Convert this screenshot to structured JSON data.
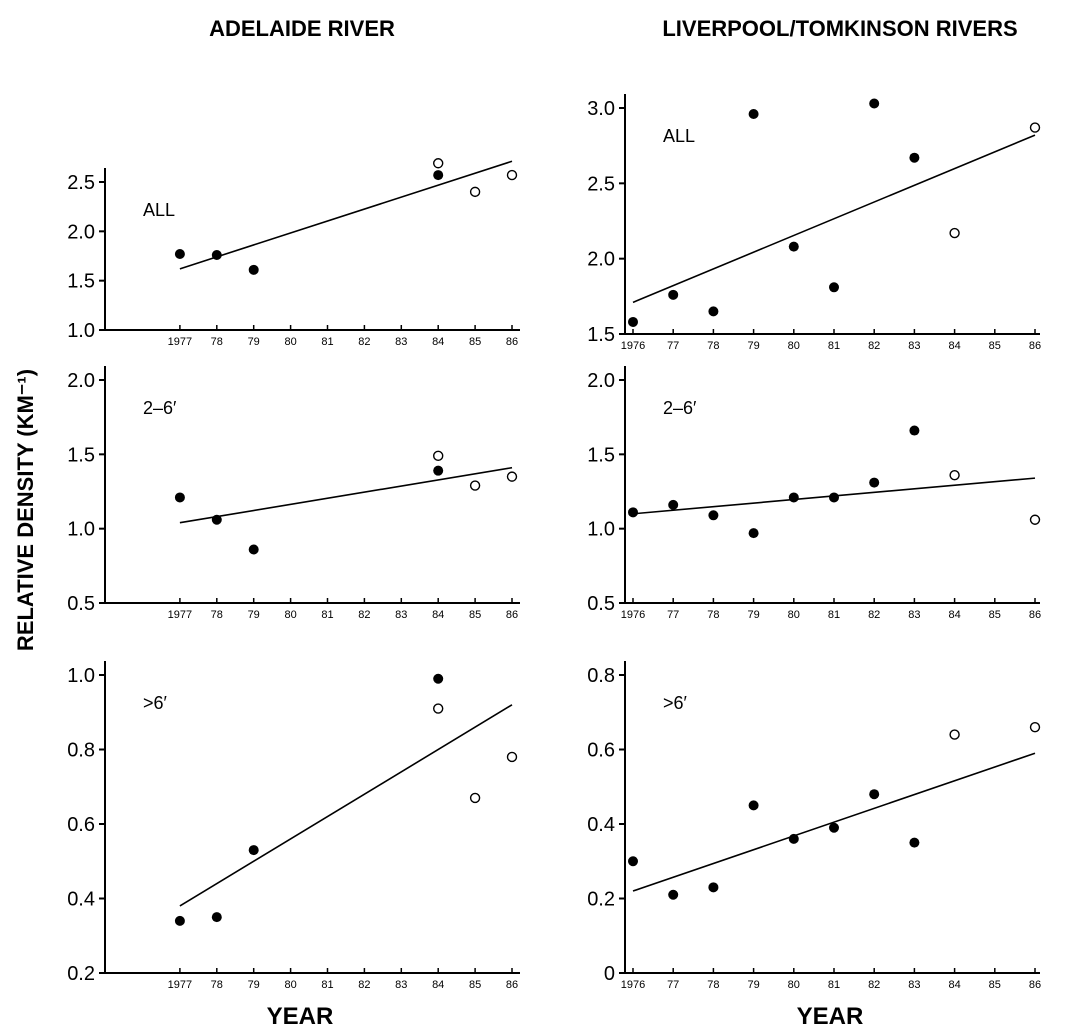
{
  "titles": {
    "left": "ADELAIDE RIVER",
    "right": "LIVERPOOL/TOMKINSON RIVERS"
  },
  "ylabel": "RELATIVE DENSITY (KM⁻¹)",
  "xlabel_left": "YEAR",
  "xlabel_right": "YEAR",
  "legend": {
    "filled_marker": "filled circle",
    "open_marker": "open circle"
  },
  "chart_data": [
    {
      "type": "scatter",
      "panel": "adelaide-all",
      "label": "ALL",
      "xlim": [
        1976,
        1986
      ],
      "ylim": [
        1.0,
        2.5
      ],
      "yticks": [
        "1.0",
        "1.5",
        "2.0",
        "2.5"
      ],
      "xticks": [
        "1977",
        "78",
        "79",
        "80",
        "81",
        "82",
        "83",
        "84",
        "85",
        "86"
      ],
      "filled": [
        [
          1977,
          1.77
        ],
        [
          1978,
          1.76
        ],
        [
          1979,
          1.61
        ],
        [
          1984,
          2.57
        ]
      ],
      "open": [
        [
          1984,
          2.69
        ],
        [
          1985,
          2.4
        ],
        [
          1986,
          2.57
        ]
      ],
      "trend": [
        [
          1977,
          1.62
        ],
        [
          1986,
          2.71
        ]
      ]
    },
    {
      "type": "scatter",
      "panel": "liverpool-all",
      "label": "ALL",
      "xlim": [
        1976,
        1986
      ],
      "ylim": [
        1.5,
        3.0
      ],
      "yticks": [
        "1.5",
        "2.0",
        "2.5",
        "3.0"
      ],
      "xticks": [
        "1976",
        "77",
        "78",
        "79",
        "80",
        "81",
        "82",
        "83",
        "84",
        "85",
        "86"
      ],
      "filled": [
        [
          1976,
          1.58
        ],
        [
          1977,
          1.76
        ],
        [
          1978,
          1.65
        ],
        [
          1979,
          2.96
        ],
        [
          1980,
          2.08
        ],
        [
          1981,
          1.81
        ],
        [
          1982,
          3.03
        ],
        [
          1983,
          2.67
        ]
      ],
      "open": [
        [
          1984,
          2.17
        ],
        [
          1986,
          2.87
        ]
      ],
      "trend": [
        [
          1976,
          1.71
        ],
        [
          1986,
          2.82
        ]
      ]
    },
    {
      "type": "scatter",
      "panel": "adelaide-2-6",
      "label": "2–6′",
      "xlim": [
        1976,
        1986
      ],
      "ylim": [
        0.5,
        2.0
      ],
      "yticks": [
        "0.5",
        "1.0",
        "1.5",
        "2.0"
      ],
      "xticks": [
        "1977",
        "78",
        "79",
        "80",
        "81",
        "82",
        "83",
        "84",
        "85",
        "86"
      ],
      "filled": [
        [
          1977,
          1.21
        ],
        [
          1978,
          1.06
        ],
        [
          1979,
          0.86
        ],
        [
          1984,
          1.39
        ]
      ],
      "open": [
        [
          1984,
          1.49
        ],
        [
          1985,
          1.29
        ],
        [
          1986,
          1.35
        ]
      ],
      "trend": [
        [
          1977,
          1.04
        ],
        [
          1986,
          1.41
        ]
      ]
    },
    {
      "type": "scatter",
      "panel": "liverpool-2-6",
      "label": "2–6′",
      "xlim": [
        1976,
        1986
      ],
      "ylim": [
        0.5,
        2.0
      ],
      "yticks": [
        "0.5",
        "1.0",
        "1.5",
        "2.0"
      ],
      "xticks": [
        "1976",
        "77",
        "78",
        "79",
        "80",
        "81",
        "82",
        "83",
        "84",
        "85",
        "86"
      ],
      "filled": [
        [
          1976,
          1.11
        ],
        [
          1977,
          1.16
        ],
        [
          1978,
          1.09
        ],
        [
          1979,
          0.97
        ],
        [
          1980,
          1.21
        ],
        [
          1981,
          1.21
        ],
        [
          1982,
          1.31
        ],
        [
          1983,
          1.66
        ]
      ],
      "open": [
        [
          1984,
          1.36
        ],
        [
          1986,
          1.06
        ]
      ],
      "trend": [
        [
          1976,
          1.1
        ],
        [
          1986,
          1.34
        ]
      ]
    },
    {
      "type": "scatter",
      "panel": "adelaide-gt6",
      "label": ">6′",
      "xlim": [
        1976,
        1986
      ],
      "ylim": [
        0.2,
        1.0
      ],
      "yticks": [
        "0.2",
        "0.4",
        "0.6",
        "0.8",
        "1.0"
      ],
      "xticks": [
        "1977",
        "78",
        "79",
        "80",
        "81",
        "82",
        "83",
        "84",
        "85",
        "86"
      ],
      "filled": [
        [
          1977,
          0.34
        ],
        [
          1978,
          0.35
        ],
        [
          1979,
          0.53
        ],
        [
          1984,
          0.99
        ]
      ],
      "open": [
        [
          1984,
          0.91
        ],
        [
          1985,
          0.67
        ],
        [
          1986,
          0.78
        ]
      ],
      "trend": [
        [
          1977,
          0.38
        ],
        [
          1986,
          0.92
        ]
      ]
    },
    {
      "type": "scatter",
      "panel": "liverpool-gt6",
      "label": ">6′",
      "xlim": [
        1976,
        1986
      ],
      "ylim": [
        0.0,
        0.8
      ],
      "yticks": [
        "0",
        "0.2",
        "0.4",
        "0.6",
        "0.8"
      ],
      "xticks": [
        "1976",
        "77",
        "78",
        "79",
        "80",
        "81",
        "82",
        "83",
        "84",
        "85",
        "86"
      ],
      "filled": [
        [
          1976,
          0.3
        ],
        [
          1977,
          0.21
        ],
        [
          1978,
          0.23
        ],
        [
          1979,
          0.45
        ],
        [
          1980,
          0.36
        ],
        [
          1981,
          0.39
        ],
        [
          1982,
          0.48
        ],
        [
          1983,
          0.35
        ]
      ],
      "open": [
        [
          1984,
          0.64
        ],
        [
          1986,
          0.66
        ]
      ],
      "trend": [
        [
          1976,
          0.22
        ],
        [
          1986,
          0.59
        ]
      ]
    }
  ]
}
